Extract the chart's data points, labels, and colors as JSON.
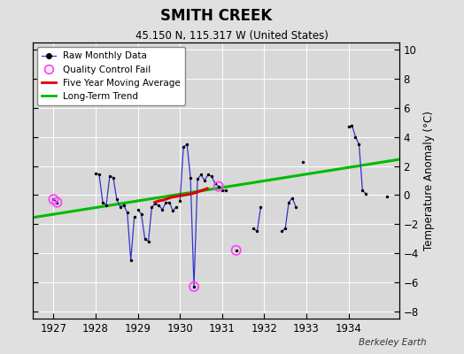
{
  "title": "SMITH CREEK",
  "subtitle": "45.150 N, 115.317 W (United States)",
  "ylabel": "Temperature Anomaly (°C)",
  "watermark": "Berkeley Earth",
  "xlim": [
    1926.5,
    1935.2
  ],
  "ylim": [
    -8.5,
    10.5
  ],
  "yticks": [
    -8,
    -6,
    -4,
    -2,
    0,
    2,
    4,
    6,
    8,
    10
  ],
  "xticks": [
    1927,
    1928,
    1929,
    1930,
    1931,
    1932,
    1933,
    1934
  ],
  "background_color": "#e0e0e0",
  "plot_background": "#d8d8d8",
  "raw_segments": [
    {
      "x": [
        1927.0,
        1927.083
      ],
      "y": [
        -0.3,
        -0.5
      ]
    },
    {
      "x": [
        1928.0,
        1928.083,
        1928.167,
        1928.25,
        1928.333,
        1928.417,
        1928.5,
        1928.583,
        1928.667,
        1928.75,
        1928.833,
        1928.917
      ],
      "y": [
        1.5,
        1.4,
        -0.5,
        -0.7,
        1.3,
        1.2,
        -0.3,
        -0.8,
        -0.7,
        -1.2,
        -4.5,
        -1.5
      ]
    },
    {
      "x": [
        1929.0,
        1929.083,
        1929.167,
        1929.25,
        1929.333,
        1929.417,
        1929.5,
        1929.583,
        1929.667,
        1929.75,
        1929.833,
        1929.917
      ],
      "y": [
        -1.0,
        -1.3,
        -3.0,
        -3.2,
        -0.8,
        -0.6,
        -0.7,
        -1.0,
        -0.5,
        -0.5,
        -1.1,
        -0.8
      ]
    },
    {
      "x": [
        1930.0,
        1930.083,
        1930.167,
        1930.25,
        1930.333,
        1930.417,
        1930.5,
        1930.583,
        1930.667,
        1930.75,
        1930.833,
        1930.917
      ],
      "y": [
        -0.4,
        3.3,
        3.5,
        1.2,
        -6.3,
        1.1,
        1.4,
        1.0,
        1.4,
        1.3,
        0.8,
        0.6
      ]
    },
    {
      "x": [
        1931.0,
        1931.083
      ],
      "y": [
        0.3,
        0.3
      ]
    },
    {
      "x": [
        1931.333
      ],
      "y": [
        -3.8
      ]
    },
    {
      "x": [
        1931.75,
        1931.833,
        1931.917
      ],
      "y": [
        -2.3,
        -2.5,
        -0.8
      ]
    },
    {
      "x": [
        1932.417,
        1932.5,
        1932.583,
        1932.667,
        1932.75
      ],
      "y": [
        -2.5,
        -2.3,
        -0.5,
        -0.2,
        -0.8
      ]
    },
    {
      "x": [
        1932.917
      ],
      "y": [
        2.3
      ]
    },
    {
      "x": [
        1934.0,
        1934.083,
        1934.167,
        1934.25,
        1934.333,
        1934.417
      ],
      "y": [
        4.7,
        4.8,
        4.0,
        3.5,
        0.3,
        0.1
      ]
    },
    {
      "x": [
        1934.917
      ],
      "y": [
        -0.1
      ]
    }
  ],
  "qc_fail_x": [
    1927.0,
    1927.083,
    1930.333,
    1930.917,
    1931.333
  ],
  "qc_fail_y": [
    -0.3,
    -0.5,
    -6.3,
    0.6,
    -3.8
  ],
  "moving_avg_x": [
    1929.4,
    1929.5,
    1929.6,
    1929.7,
    1929.8,
    1929.9,
    1930.0,
    1930.1,
    1930.2,
    1930.3,
    1930.4,
    1930.5,
    1930.6,
    1930.65
  ],
  "moving_avg_y": [
    -0.5,
    -0.4,
    -0.35,
    -0.25,
    -0.15,
    -0.1,
    -0.05,
    0.0,
    0.05,
    0.1,
    0.2,
    0.3,
    0.4,
    0.45
  ],
  "trend_x": [
    1926.5,
    1935.2
  ],
  "trend_y": [
    -1.55,
    2.45
  ],
  "raw_color": "#3333cc",
  "qc_color": "#ff44ff",
  "moving_avg_color": "#dd0000",
  "trend_color": "#00bb00",
  "grid_color": "#ffffff"
}
